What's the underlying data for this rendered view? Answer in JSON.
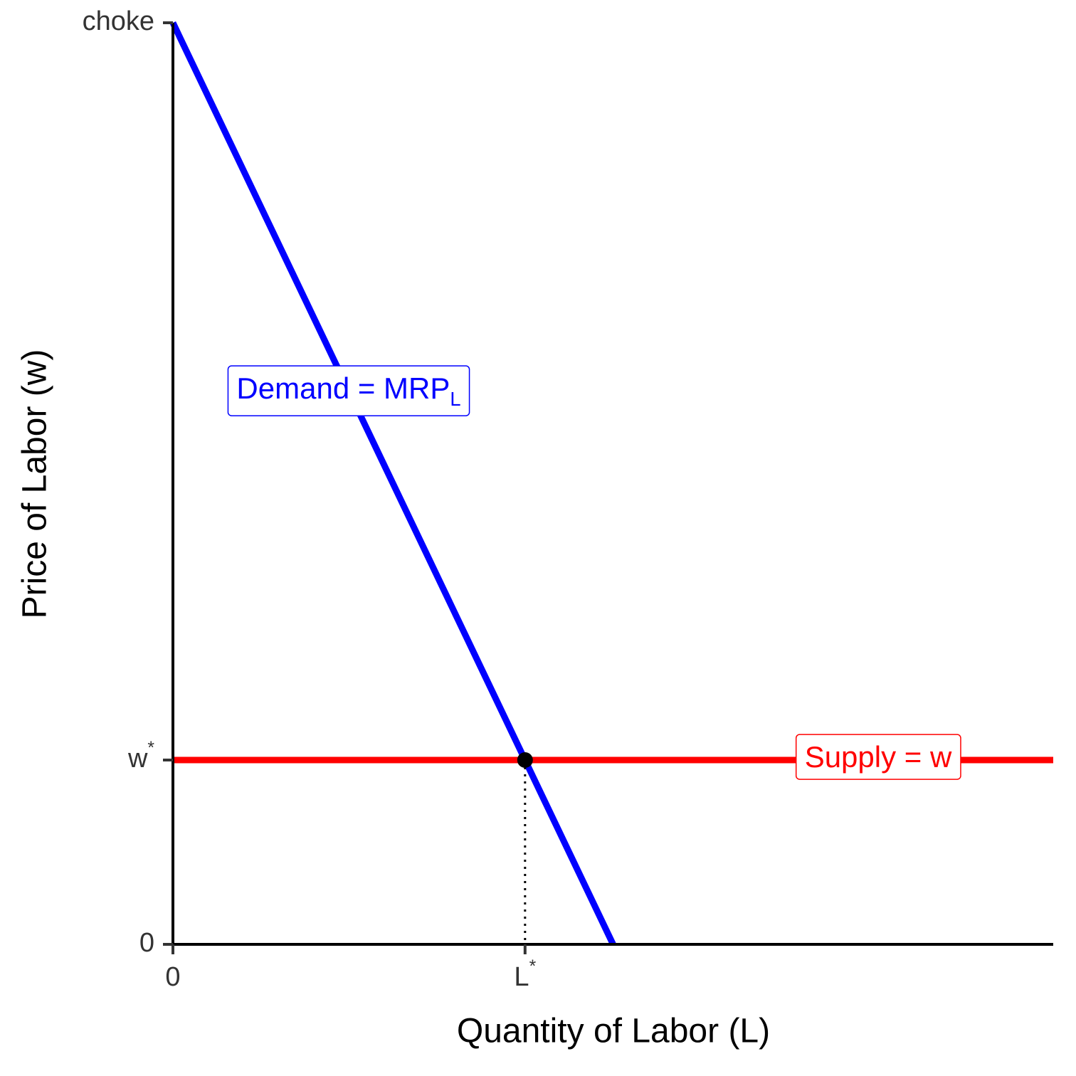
{
  "chart_data": {
    "type": "line",
    "x_label": "Quantity of Labor (L)",
    "y_label": "Price of Labor (w)",
    "xlim": [
      0,
      10
    ],
    "ylim": [
      0,
      10
    ],
    "xticks": [
      0,
      {
        "value": 4,
        "label": "L",
        "sup": "*"
      }
    ],
    "yticks": [
      0,
      {
        "value": 2,
        "label": "w",
        "sup": "*"
      },
      {
        "value": 10,
        "label": "choke"
      }
    ],
    "series": [
      {
        "name": "Demand = MRP",
        "sub": "L",
        "color": "#0000ff",
        "x": [
          0,
          5
        ],
        "values": [
          10,
          0
        ]
      },
      {
        "name": "Supply = w",
        "color": "#ff0000",
        "x": [
          0,
          10
        ],
        "values": [
          2,
          2
        ]
      }
    ],
    "equilibrium": {
      "x": 4,
      "y": 2,
      "color": "#000000"
    }
  }
}
